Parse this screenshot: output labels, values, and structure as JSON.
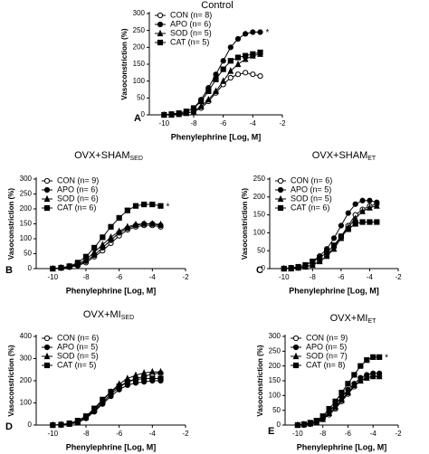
{
  "chart_data": [
    {
      "type": "line",
      "title": "Control",
      "panel_label": "A",
      "xlabel": "Phenylephrine [Log, M]",
      "ylabel": "Vasoconstriction (%)",
      "x": [
        -10,
        -9.5,
        -9,
        -8.5,
        -8,
        -7.5,
        -7,
        -6.5,
        -6,
        -5.5,
        -5,
        -4.5,
        -4,
        -3.5
      ],
      "xlim": [
        -11,
        -2
      ],
      "xticks": [
        -10,
        -8,
        -6,
        -4,
        -2
      ],
      "ylim": [
        0,
        300
      ],
      "yticks": [
        0,
        50,
        100,
        150,
        200,
        250,
        300
      ],
      "legend": "top-left",
      "annotation": "*",
      "series": [
        {
          "name": "CON (n= 8)",
          "color": "#000000",
          "marker": "open-circle",
          "values": [
            0,
            0,
            2,
            5,
            10,
            20,
            40,
            65,
            90,
            110,
            120,
            125,
            120,
            115
          ]
        },
        {
          "name": "APO (n= 6)",
          "color": "#000000",
          "marker": "circle",
          "values": [
            0,
            2,
            5,
            10,
            20,
            45,
            80,
            120,
            160,
            200,
            225,
            240,
            245,
            245
          ]
        },
        {
          "name": "SOD (n= 5)",
          "color": "#000000",
          "marker": "triangle",
          "values": [
            0,
            0,
            2,
            5,
            10,
            25,
            45,
            70,
            100,
            130,
            150,
            165,
            175,
            180
          ]
        },
        {
          "name": "CAT (n= 5)",
          "color": "#000000",
          "marker": "square",
          "values": [
            0,
            2,
            5,
            10,
            20,
            40,
            70,
            105,
            135,
            160,
            170,
            175,
            180,
            185
          ]
        }
      ]
    },
    {
      "type": "line",
      "title": "OVX+SHAM",
      "title_subscript": "SED",
      "panel_label": "B",
      "xlabel": "Phenylephrine [Log, M]",
      "ylabel": "Vasoconstriction (%)",
      "x": [
        -10,
        -9.5,
        -9,
        -8.5,
        -8,
        -7.5,
        -7,
        -6.5,
        -6,
        -5.5,
        -5,
        -4.5,
        -4,
        -3.5
      ],
      "xlim": [
        -11,
        -2
      ],
      "xticks": [
        -10,
        -8,
        -6,
        -4,
        -2
      ],
      "ylim": [
        0,
        300
      ],
      "yticks": [
        0,
        50,
        100,
        150,
        200,
        250,
        300
      ],
      "legend": "top-left",
      "annotation": "*",
      "series": [
        {
          "name": "CON (n= 9)",
          "color": "#000000",
          "marker": "open-circle",
          "values": [
            0,
            2,
            5,
            10,
            20,
            40,
            60,
            85,
            110,
            130,
            140,
            145,
            145,
            140
          ]
        },
        {
          "name": "APO (n= 6)",
          "color": "#000000",
          "marker": "circle",
          "values": [
            0,
            2,
            5,
            12,
            25,
            45,
            70,
            95,
            120,
            135,
            145,
            150,
            150,
            145
          ]
        },
        {
          "name": "SOD (n= 6)",
          "color": "#000000",
          "marker": "triangle",
          "values": [
            0,
            3,
            7,
            15,
            30,
            55,
            80,
            105,
            125,
            140,
            148,
            150,
            150,
            148
          ]
        },
        {
          "name": "CAT (n= 6)",
          "color": "#000000",
          "marker": "square",
          "values": [
            0,
            3,
            8,
            20,
            40,
            70,
            105,
            140,
            170,
            195,
            210,
            215,
            215,
            210
          ]
        }
      ]
    },
    {
      "type": "line",
      "title": "OVX+SHAM",
      "title_subscript": "ET",
      "panel_label": "C",
      "xlabel": "Phenylephrine [Log, M]",
      "ylabel": "Vasoconstriction (%)",
      "x": [
        -10,
        -9.5,
        -9,
        -8.5,
        -8,
        -7.5,
        -7,
        -6.5,
        -6,
        -5.5,
        -5,
        -4.5,
        -4,
        -3.5
      ],
      "xlim": [
        -11,
        -2
      ],
      "xticks": [
        -10,
        -8,
        -6,
        -4,
        -2
      ],
      "ylim": [
        0,
        250
      ],
      "yticks": [
        0,
        50,
        100,
        150,
        200,
        250
      ],
      "legend": "top-left",
      "series": [
        {
          "name": "CON (n= 6)",
          "color": "#000000",
          "marker": "open-circle",
          "values": [
            0,
            0,
            2,
            5,
            10,
            20,
            35,
            60,
            90,
            120,
            150,
            165,
            175,
            180
          ]
        },
        {
          "name": "APO (n= 5)",
          "color": "#000000",
          "marker": "circle",
          "values": [
            0,
            2,
            5,
            10,
            20,
            35,
            55,
            85,
            120,
            155,
            180,
            190,
            190,
            185
          ]
        },
        {
          "name": "SOD (n= 5)",
          "color": "#000000",
          "marker": "triangle",
          "values": [
            0,
            0,
            2,
            5,
            10,
            20,
            35,
            55,
            85,
            115,
            140,
            160,
            170,
            175
          ]
        },
        {
          "name": "CAT (n= 6)",
          "color": "#000000",
          "marker": "square",
          "values": [
            0,
            2,
            5,
            10,
            20,
            30,
            45,
            65,
            90,
            110,
            125,
            130,
            130,
            130
          ]
        }
      ]
    },
    {
      "type": "line",
      "title": "OVX+MI",
      "title_subscript": "SED",
      "panel_label": "D",
      "xlabel": "Phenylephrine [Log, M]",
      "ylabel": "Vasoconstriction (%)",
      "x": [
        -10,
        -9.5,
        -9,
        -8.5,
        -8,
        -7.5,
        -7,
        -6.5,
        -6,
        -5.5,
        -5,
        -4.5,
        -4,
        -3.5
      ],
      "xlim": [
        -11,
        -2
      ],
      "xticks": [
        -10,
        -8,
        -6,
        -4,
        -2
      ],
      "ylim": [
        0,
        400
      ],
      "yticks": [
        0,
        100,
        200,
        300,
        400
      ],
      "legend": "top-left",
      "series": [
        {
          "name": "CON (n= 6)",
          "color": "#000000",
          "marker": "open-circle",
          "values": [
            0,
            0,
            5,
            15,
            35,
            65,
            100,
            140,
            170,
            195,
            210,
            220,
            230,
            235
          ]
        },
        {
          "name": "APO (n= 5)",
          "color": "#000000",
          "marker": "circle",
          "values": [
            0,
            0,
            5,
            10,
            30,
            60,
            95,
            130,
            160,
            180,
            190,
            195,
            200,
            200
          ]
        },
        {
          "name": "SOD (n= 5)",
          "color": "#000000",
          "marker": "triangle",
          "values": [
            0,
            2,
            5,
            15,
            35,
            70,
            110,
            150,
            185,
            210,
            225,
            235,
            240,
            240
          ]
        },
        {
          "name": "CAT (n= 5)",
          "color": "#000000",
          "marker": "square",
          "values": [
            0,
            2,
            8,
            20,
            40,
            75,
            115,
            150,
            175,
            195,
            205,
            210,
            210,
            210
          ]
        }
      ]
    },
    {
      "type": "line",
      "title": "OVX+MI",
      "title_subscript": "ET",
      "panel_label": "E",
      "xlabel": "Phenylephrine [Log, M]",
      "ylabel": "Vasoconstriction (%)",
      "x": [
        -10,
        -9.5,
        -9,
        -8.5,
        -8,
        -7.5,
        -7,
        -6.5,
        -6,
        -5.5,
        -5,
        -4.5,
        -4,
        -3.5
      ],
      "xlim": [
        -11,
        -2
      ],
      "xticks": [
        -10,
        -8,
        -6,
        -4,
        -2
      ],
      "ylim": [
        0,
        300
      ],
      "yticks": [
        0,
        50,
        100,
        150,
        200,
        250,
        300
      ],
      "legend": "top-left",
      "annotation": "*",
      "series": [
        {
          "name": "CON (n= 9)",
          "color": "#000000",
          "marker": "open-circle",
          "values": [
            0,
            0,
            3,
            8,
            20,
            35,
            55,
            80,
            105,
            130,
            150,
            160,
            165,
            165
          ]
        },
        {
          "name": "APO (n= 5)",
          "color": "#000000",
          "marker": "circle",
          "values": [
            0,
            2,
            5,
            12,
            25,
            45,
            70,
            95,
            120,
            140,
            160,
            170,
            175,
            175
          ]
        },
        {
          "name": "SOD (n= 7)",
          "color": "#000000",
          "marker": "triangle",
          "values": [
            0,
            2,
            5,
            10,
            20,
            40,
            60,
            85,
            110,
            135,
            150,
            160,
            165,
            165
          ]
        },
        {
          "name": "CAT (n= 8)",
          "color": "#000000",
          "marker": "square",
          "values": [
            0,
            3,
            8,
            15,
            30,
            55,
            80,
            110,
            140,
            170,
            200,
            220,
            230,
            230
          ]
        }
      ]
    }
  ]
}
